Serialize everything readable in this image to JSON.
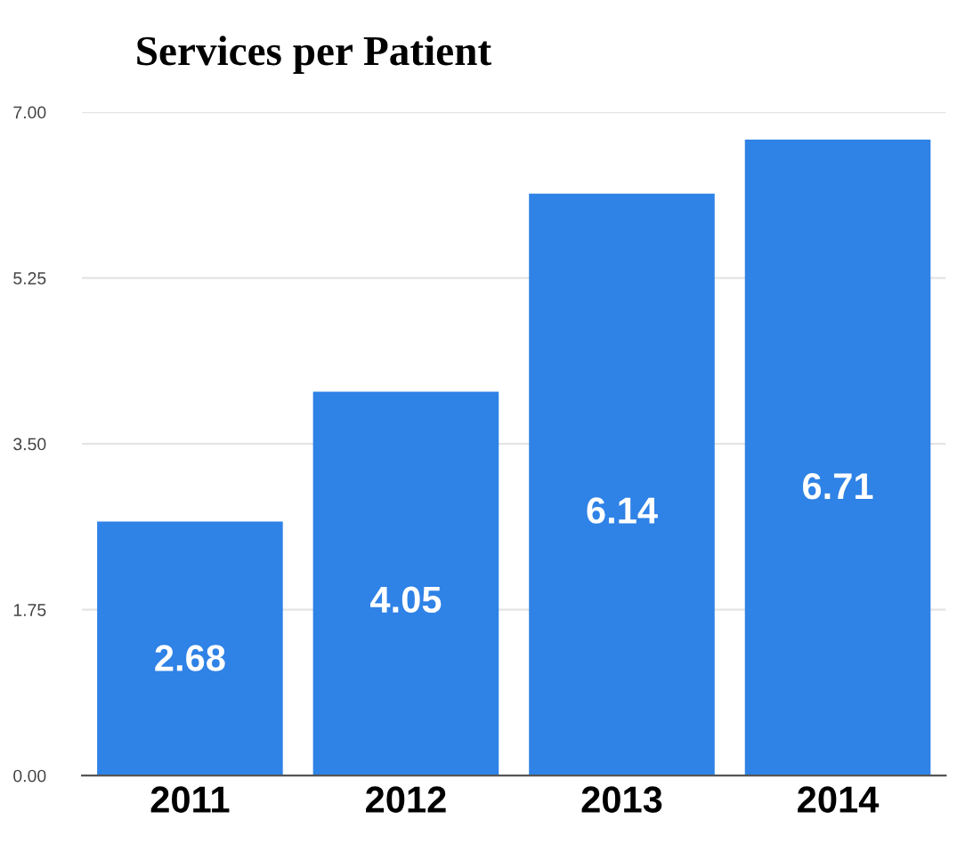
{
  "chart_data": {
    "type": "bar",
    "title": "Services per Patient",
    "categories": [
      "2011",
      "2012",
      "2013",
      "2014"
    ],
    "values": [
      2.68,
      4.05,
      6.14,
      6.71
    ],
    "color": "#2f82e6",
    "ylim": [
      0,
      7
    ],
    "yticks": [
      {
        "value": 0,
        "label": "0.00"
      },
      {
        "value": 1.75,
        "label": "1.75"
      },
      {
        "value": 3.5,
        "label": "3.50"
      },
      {
        "value": 5.25,
        "label": "5.25"
      },
      {
        "value": 7,
        "label": "7.00"
      }
    ],
    "grid": "y",
    "data_labels": true
  }
}
